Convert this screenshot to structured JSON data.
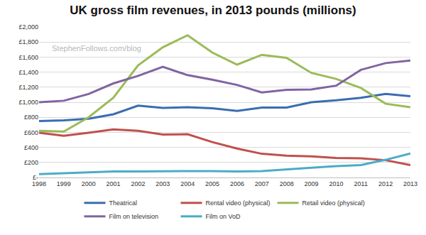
{
  "chart_data": {
    "type": "line",
    "title": "UK gross film revenues, in 2013 pounds (millions)",
    "categories": [
      "1998",
      "1999",
      "2000",
      "2001",
      "2002",
      "2003",
      "2004",
      "2005",
      "2006",
      "2007",
      "2008",
      "2009",
      "2010",
      "2011",
      "2012",
      "2013"
    ],
    "series": [
      {
        "name": "Theatrical",
        "color": "#3a6db0",
        "values": [
          750,
          760,
          780,
          840,
          955,
          925,
          935,
          920,
          885,
          930,
          930,
          1000,
          1025,
          1060,
          1110,
          1080
        ]
      },
      {
        "name": "Rental video (physical)",
        "color": "#c0504d",
        "values": [
          595,
          555,
          595,
          640,
          620,
          570,
          575,
          470,
          385,
          315,
          290,
          280,
          260,
          255,
          230,
          165
        ]
      },
      {
        "name": "Retail video (physical)",
        "color": "#9bbb59",
        "values": [
          620,
          610,
          800,
          1060,
          1490,
          1730,
          1890,
          1660,
          1500,
          1630,
          1590,
          1390,
          1310,
          1190,
          980,
          935
        ]
      },
      {
        "name": "Film on television",
        "color": "#8064a2",
        "values": [
          1000,
          1020,
          1110,
          1250,
          1350,
          1470,
          1360,
          1300,
          1230,
          1130,
          1165,
          1170,
          1220,
          1430,
          1520,
          1555
        ]
      },
      {
        "name": "Film on VoD",
        "color": "#4bacc6",
        "values": [
          45,
          55,
          65,
          80,
          80,
          85,
          85,
          85,
          80,
          85,
          110,
          130,
          150,
          165,
          235,
          320
        ]
      }
    ],
    "ylim": [
      0,
      2000
    ],
    "yticks": [
      {
        "value": 0,
        "label": "£-"
      },
      {
        "value": 200,
        "label": "£200"
      },
      {
        "value": 400,
        "label": "£400"
      },
      {
        "value": 600,
        "label": "£600"
      },
      {
        "value": 800,
        "label": "£800"
      },
      {
        "value": 1000,
        "label": "£1,000"
      },
      {
        "value": 1200,
        "label": "£1,200"
      },
      {
        "value": 1400,
        "label": "£1,400"
      },
      {
        "value": 1600,
        "label": "£1,600"
      },
      {
        "value": 1800,
        "label": "£1,800"
      },
      {
        "value": 2000,
        "label": "£2,000"
      }
    ],
    "grid": true,
    "legend": "bottom",
    "annotations": [
      {
        "text": "StephenFollows.com/blog"
      }
    ]
  }
}
